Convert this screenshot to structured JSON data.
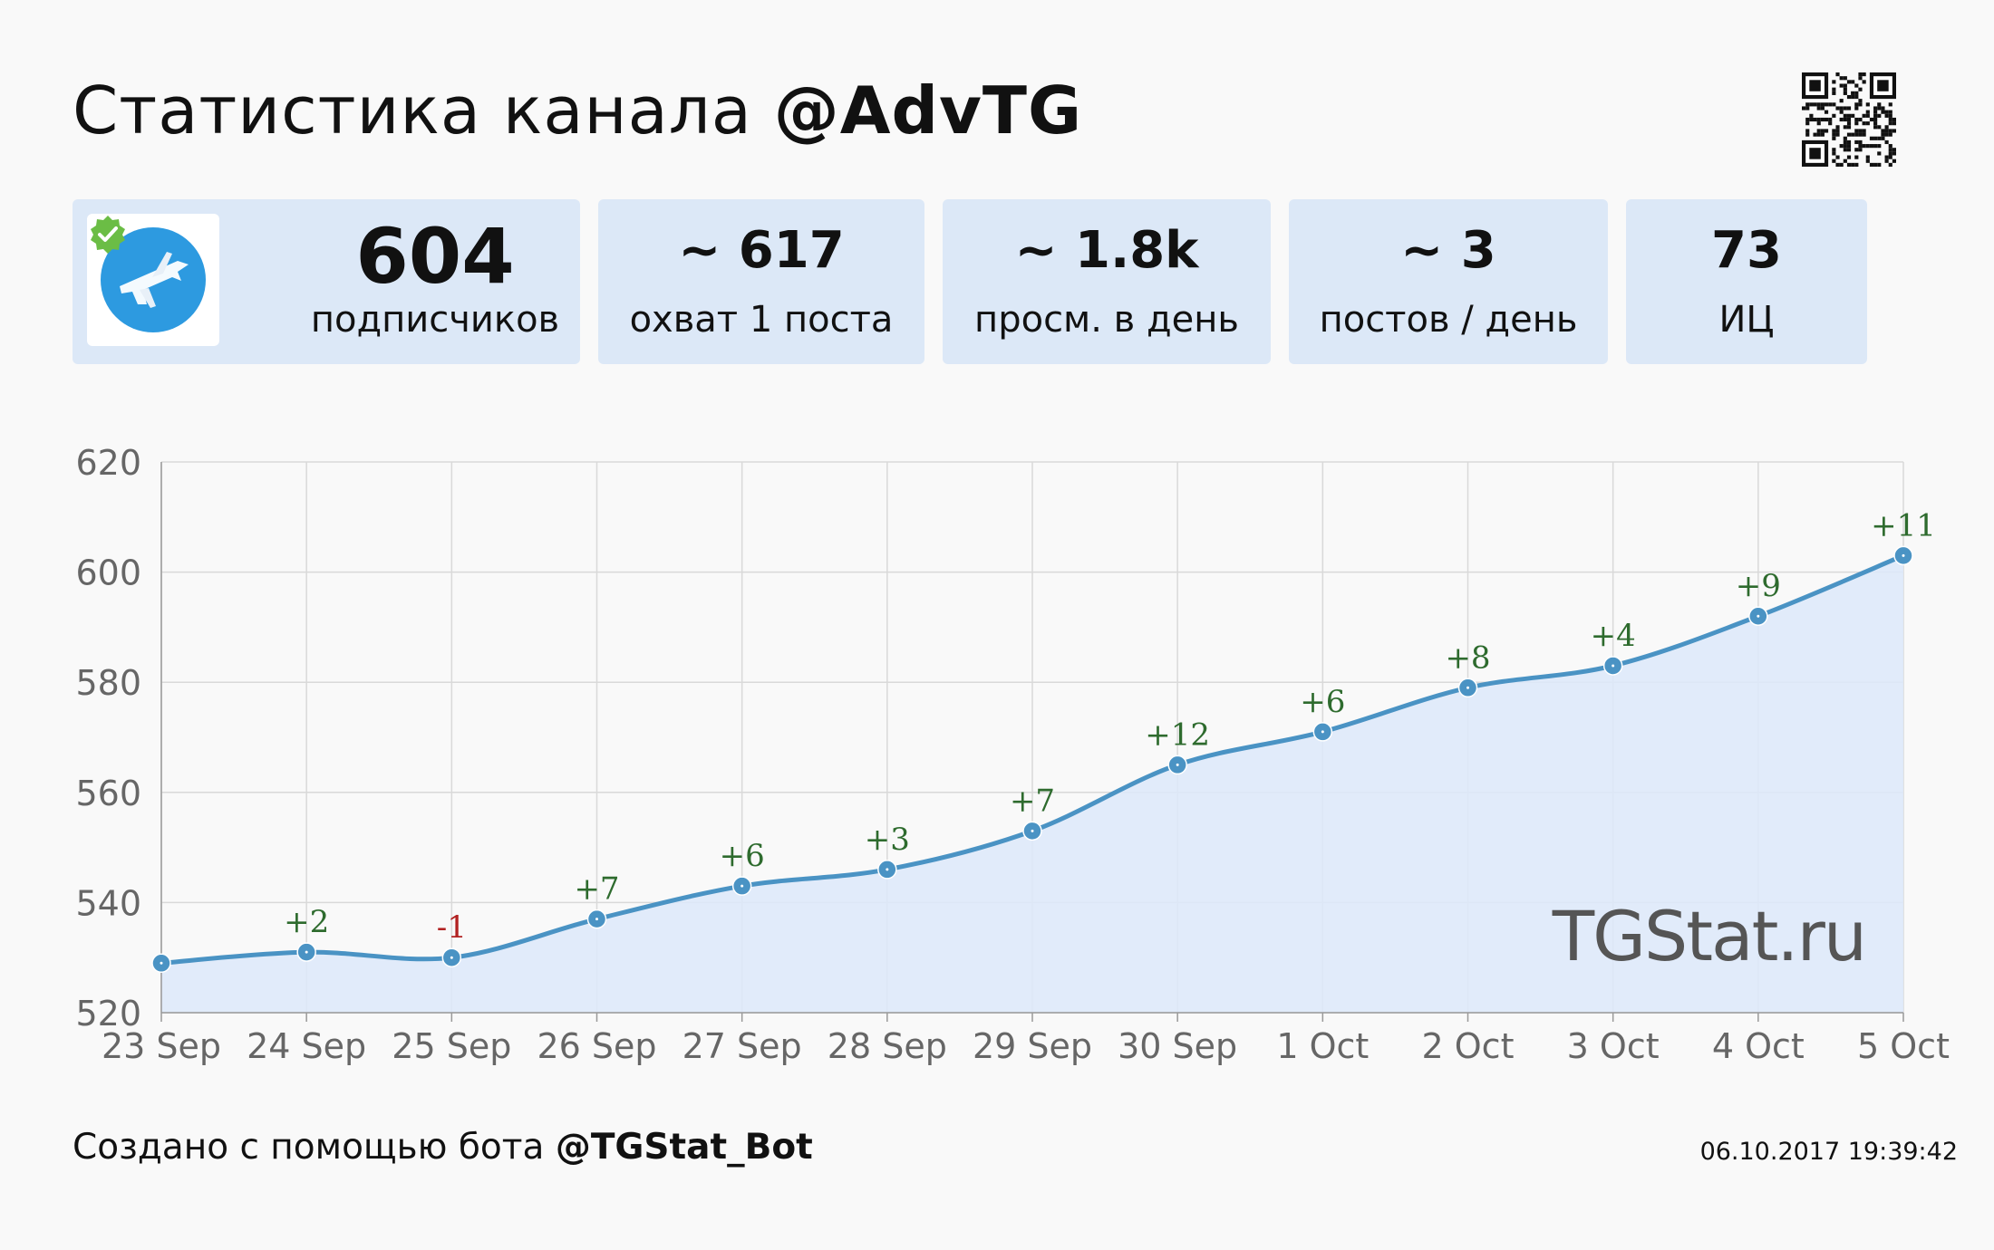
{
  "header": {
    "title_prefix": "Статистика канала",
    "channel": "@AdvTG"
  },
  "stats": {
    "subscribers": {
      "value": "604",
      "label": "подписчиков"
    },
    "reach": {
      "value": "~ 617",
      "label": "охват 1 поста"
    },
    "views": {
      "value": "~ 1.8k",
      "label": "просм. в день"
    },
    "posts": {
      "value": "~ 3",
      "label": "постов / день"
    },
    "ic": {
      "value": "73",
      "label": "ИЦ"
    }
  },
  "chart_data": {
    "type": "area",
    "categories": [
      "23 Sep",
      "24 Sep",
      "25 Sep",
      "26 Sep",
      "27 Sep",
      "28 Sep",
      "29 Sep",
      "30 Sep",
      "1 Oct",
      "2 Oct",
      "3 Oct",
      "4 Oct",
      "5 Oct"
    ],
    "values": [
      529,
      531,
      530,
      537,
      543,
      546,
      553,
      565,
      571,
      579,
      583,
      592,
      603
    ],
    "deltas": [
      "",
      "+2",
      "-1",
      "+7",
      "+6",
      "+3",
      "+7",
      "+12",
      "+6",
      "+8",
      "+4",
      "+9",
      "+11"
    ],
    "ylim": [
      520,
      620
    ],
    "yticks": [
      520,
      540,
      560,
      580,
      600,
      620
    ],
    "grid": true,
    "watermark": "TGStat.ru",
    "colors": {
      "line": "#4a93c4",
      "fill": "#dde9fa",
      "positive": "#2e6b2e",
      "negative": "#b22222"
    }
  },
  "footer": {
    "prefix": "Создано с помощью бота",
    "bot": "@TGStat_Bot",
    "timestamp": "06.10.2017 19:39:42"
  }
}
